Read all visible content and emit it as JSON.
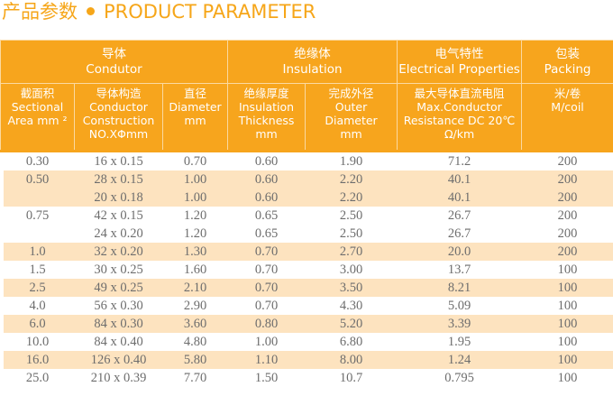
{
  "title": {
    "cn": "产品参数",
    "en": "PRODUCT PARAMETER"
  },
  "groups": [
    {
      "cn": "导体",
      "en": "Condutor"
    },
    {
      "cn": "绝缘体",
      "en": "Insulation"
    },
    {
      "cn": "电气特性",
      "en": "Electrical Properties"
    },
    {
      "cn": "包装",
      "en": "Packing"
    }
  ],
  "columns": [
    {
      "l1": "截面积",
      "l2": "Sectional",
      "l3": "Area mm ²",
      "l4": ""
    },
    {
      "l1": "导体构造",
      "l2": "Conductor",
      "l3": "Construction",
      "l4": "NO.XΦmm"
    },
    {
      "l1": "直径",
      "l2": "Diameter",
      "l3": "mm",
      "l4": ""
    },
    {
      "l1": "绝缘厚度",
      "l2": "Insulation",
      "l3": "Thickness",
      "l4": "mm"
    },
    {
      "l1": "完成外径",
      "l2": "Outer",
      "l3": "Diameter",
      "l4": "mm"
    },
    {
      "l1": "最大导体直流电阻",
      "l2": "Max.Conductor",
      "l3": "Resistance DC 20℃",
      "l4": "Ω/km"
    },
    {
      "l1": "米/卷",
      "l2": "M/coil",
      "l3": "",
      "l4": ""
    }
  ],
  "rows": [
    [
      "0.30",
      "16 x 0.15",
      "0.70",
      "0.60",
      "1.90",
      "71.2",
      "200"
    ],
    [
      "0.50",
      "28 x 0.15",
      "1.00",
      "0.60",
      "2.20",
      "40.1",
      "200"
    ],
    [
      "",
      "20 x 0.18",
      "1.00",
      "0.60",
      "2.20",
      "40.1",
      "200"
    ],
    [
      "0.75",
      "42 x 0.15",
      "1.20",
      "0.65",
      "2.50",
      "26.7",
      "200"
    ],
    [
      "",
      "24 x 0.20",
      "1.20",
      "0.65",
      "2.50",
      "26.7",
      "200"
    ],
    [
      "1.0",
      "32 x 0.20",
      "1.30",
      "0.70",
      "2.70",
      "20.0",
      "200"
    ],
    [
      "1.5",
      "30 x 0.25",
      "1.60",
      "0.70",
      "3.00",
      "13.7",
      "100"
    ],
    [
      "2.5",
      "49 x 0.25",
      "2.10",
      "0.70",
      "3.50",
      "8.21",
      "100"
    ],
    [
      "4.0",
      "56 x 0.30",
      "2.90",
      "0.70",
      "4.30",
      "5.09",
      "100"
    ],
    [
      "6.0",
      "84 x 0.30",
      "3.60",
      "0.80",
      "5.20",
      "3.39",
      "100"
    ],
    [
      "10.0",
      "84 x 0.40",
      "4.80",
      "1.00",
      "6.80",
      "1.95",
      "100"
    ],
    [
      "16.0",
      "126 x 0.40",
      "5.80",
      "1.10",
      "8.00",
      "1.24",
      "100"
    ],
    [
      "25.0",
      "210 x 0.39",
      "7.70",
      "1.50",
      "10.7",
      "0.795",
      "100"
    ]
  ],
  "shaded_rows": [
    1,
    2,
    5,
    7,
    9,
    11
  ],
  "colors": {
    "header": "#f7a51d",
    "shade": "#fde3bf",
    "title": "#f6a619"
  }
}
